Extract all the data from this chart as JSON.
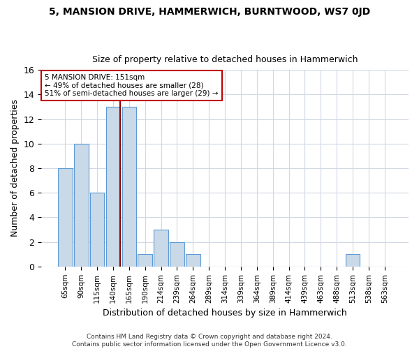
{
  "title1": "5, MANSION DRIVE, HAMMERWICH, BURNTWOOD, WS7 0JD",
  "title2": "Size of property relative to detached houses in Hammerwich",
  "xlabel": "Distribution of detached houses by size in Hammerwich",
  "ylabel": "Number of detached properties",
  "bin_labels": [
    "65sqm",
    "90sqm",
    "115sqm",
    "140sqm",
    "165sqm",
    "190sqm",
    "214sqm",
    "239sqm",
    "264sqm",
    "289sqm",
    "314sqm",
    "339sqm",
    "364sqm",
    "389sqm",
    "414sqm",
    "439sqm",
    "463sqm",
    "488sqm",
    "513sqm",
    "538sqm",
    "563sqm"
  ],
  "bar_values": [
    8,
    10,
    6,
    13,
    13,
    1,
    3,
    2,
    1,
    0,
    0,
    0,
    0,
    0,
    0,
    0,
    0,
    0,
    1,
    0,
    0
  ],
  "bar_color": "#c9d9e8",
  "bar_edge_color": "#5b9bd5",
  "vline_x": 3.44,
  "vline_color": "#8b0000",
  "annotation_text": "5 MANSION DRIVE: 151sqm\n← 49% of detached houses are smaller (28)\n51% of semi-detached houses are larger (29) →",
  "annotation_box_color": "#ffffff",
  "annotation_box_edge": "#c00000",
  "ylim": [
    0,
    16
  ],
  "yticks": [
    0,
    2,
    4,
    6,
    8,
    10,
    12,
    14,
    16
  ],
  "footer": "Contains HM Land Registry data © Crown copyright and database right 2024.\nContains public sector information licensed under the Open Government Licence v3.0.",
  "bg_color": "#ffffff",
  "plot_bg_color": "#ffffff",
  "grid_color": "#d0d8e4"
}
